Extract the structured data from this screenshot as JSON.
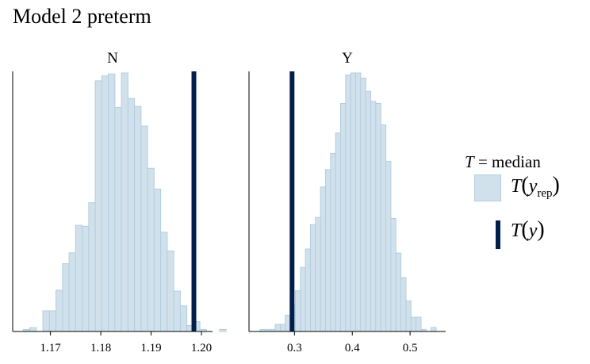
{
  "title": "Model 2 preterm",
  "legend": {
    "title_T": "T",
    "title_rest": " = median",
    "rep_label": {
      "T": "T",
      "y": "y",
      "sub": "rep"
    },
    "obs_label": {
      "T": "T",
      "y": "y"
    }
  },
  "colors": {
    "rep_fill": "#d1e1ec",
    "rep_edge": "#b3cde0",
    "observed": "#011f4b",
    "axis": "#000000"
  },
  "chart_data": [
    {
      "type": "bar",
      "subtype": "histogram",
      "panel": "N",
      "xlim": [
        1.1625,
        1.2022
      ],
      "ticks": [
        1.17,
        1.18,
        1.19,
        1.2
      ],
      "tick_labels": [
        "1.17",
        "1.18",
        "1.19",
        "1.20"
      ],
      "bin_width": 0.0013,
      "bin_start": 1.1646,
      "counts": [
        2,
        4,
        0,
        21,
        21,
        42,
        69,
        80,
        108,
        107,
        131,
        255,
        260,
        262,
        228,
        263,
        237,
        229,
        209,
        166,
        145,
        101,
        82,
        41,
        26,
        6,
        10,
        2,
        0,
        0,
        2
      ],
      "observed": 1.1985,
      "grid": false
    },
    {
      "type": "bar",
      "subtype": "histogram",
      "panel": "Y",
      "xlim": [
        0.2213,
        0.5616
      ],
      "ticks": [
        0.3,
        0.4,
        0.5
      ],
      "tick_labels": [
        "0.3",
        "0.4",
        "0.5"
      ],
      "bin_width": 0.0087,
      "bin_start": 0.2406,
      "counts": [
        2,
        2,
        2,
        7,
        7,
        16,
        26,
        40,
        63,
        81,
        105,
        112,
        142,
        159,
        175,
        195,
        224,
        252,
        254,
        254,
        249,
        236,
        226,
        224,
        203,
        167,
        111,
        77,
        53,
        30,
        14,
        14,
        2,
        0,
        4
      ],
      "observed": 0.2958,
      "grid": false
    }
  ]
}
